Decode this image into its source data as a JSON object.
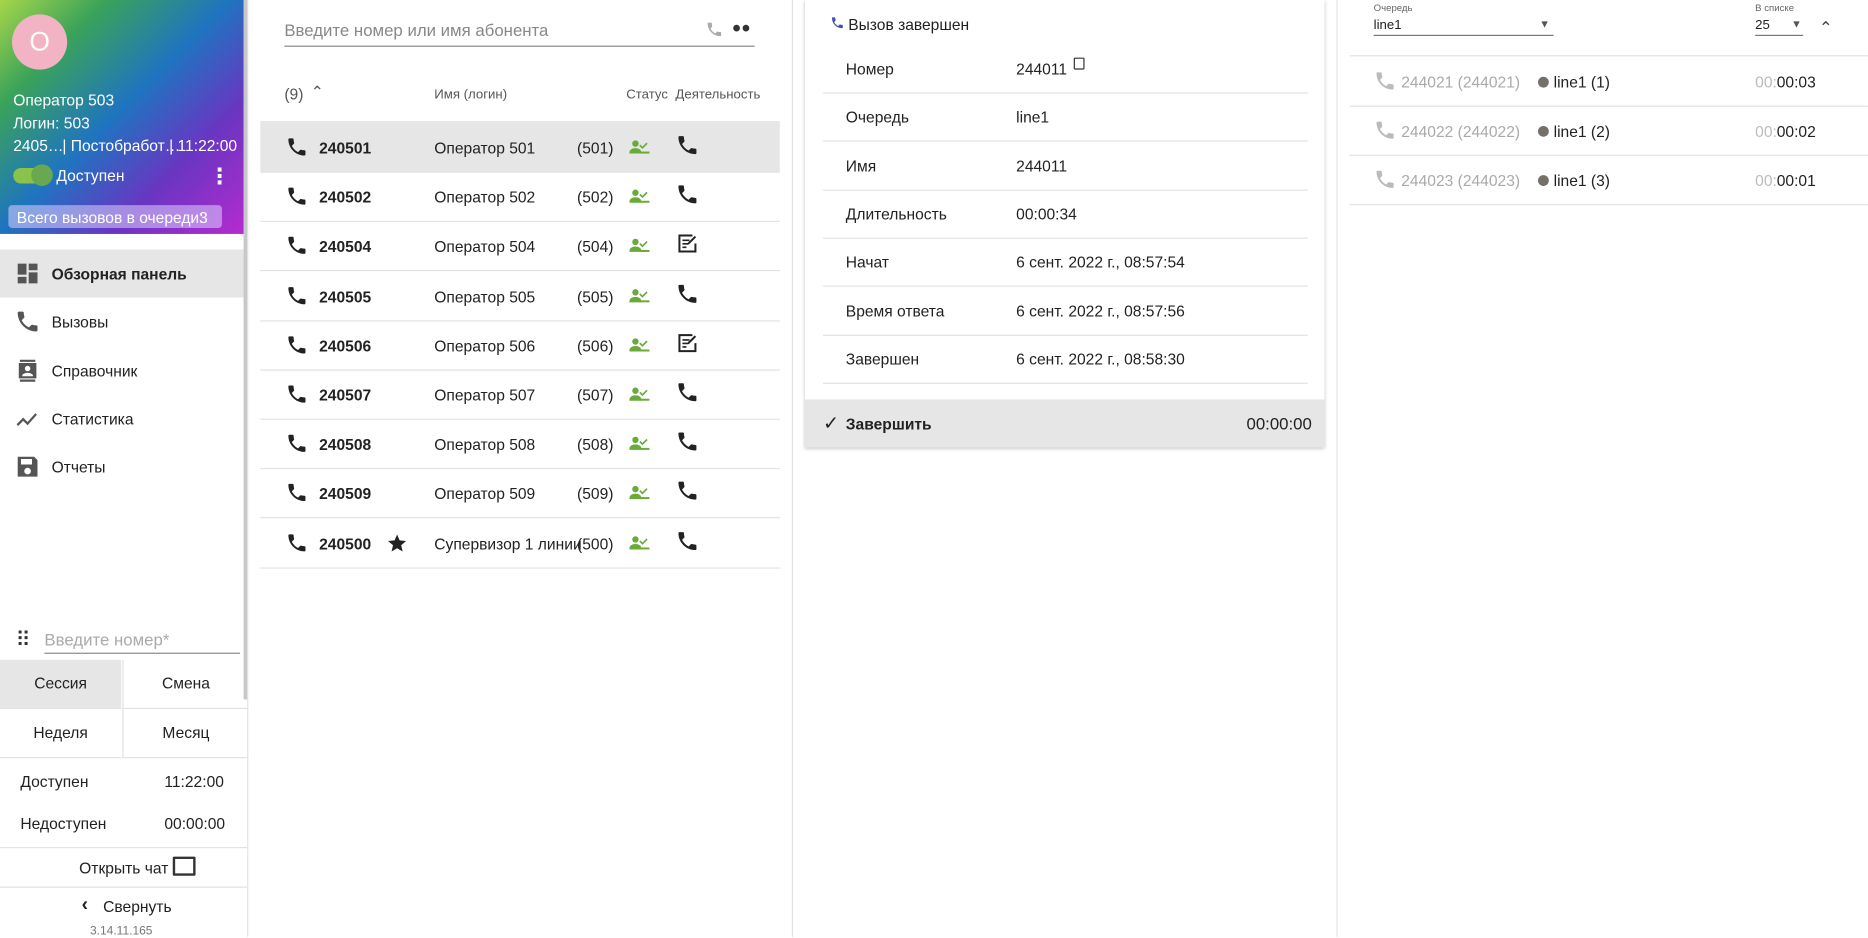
{
  "sidebar": {
    "avatar": "О",
    "name": "Оператор 503",
    "login": "Логин: 503",
    "ext": "2405…",
    "state": "| Постобработ…",
    "timer": "| 11:22:00",
    "availability": "Доступен",
    "queue_label": "Всего вызовов в очереди:",
    "queue_count": "3",
    "nav": [
      "Обзорная панель",
      "Вызовы",
      "Справочник",
      "Статистика",
      "Отчеты"
    ],
    "dial_placeholder": "Введите номер*",
    "tabs": [
      "Сессия",
      "Смена",
      "Неделя",
      "Месяц"
    ],
    "stats": [
      [
        "Доступен",
        "11:22:00"
      ],
      [
        "Недоступен",
        "00:00:00"
      ]
    ],
    "chat": "Открыть чат",
    "collapse": "Свернуть",
    "version": "3.14.11.165"
  },
  "operators": {
    "search_placeholder": "Введите номер или имя абонента",
    "count": "(9)",
    "headers": [
      "Имя (логин)",
      "Статус",
      "Деятельность"
    ],
    "rows": [
      {
        "number": "240501",
        "name": "Оператор 501",
        "login": "(501)",
        "activity": "phone"
      },
      {
        "number": "240502",
        "name": "Оператор 502",
        "login": "(502)",
        "activity": "phone"
      },
      {
        "number": "240504",
        "name": "Оператор 504",
        "login": "(504)",
        "activity": "note"
      },
      {
        "number": "240505",
        "name": "Оператор 505",
        "login": "(505)",
        "activity": "phone"
      },
      {
        "number": "240506",
        "name": "Оператор 506",
        "login": "(506)",
        "activity": "note"
      },
      {
        "number": "240507",
        "name": "Оператор 507",
        "login": "(507)",
        "activity": "phone"
      },
      {
        "number": "240508",
        "name": "Оператор 508",
        "login": "(508)",
        "activity": "phone"
      },
      {
        "number": "240509",
        "name": "Оператор 509",
        "login": "(509)",
        "activity": "phone"
      },
      {
        "number": "240500",
        "name": "Супервизор 1 линии",
        "login": "(500)",
        "activity": "phone",
        "supervisor": true
      }
    ]
  },
  "call": {
    "title": "Вызов завершен",
    "fields": [
      [
        "Номер",
        "244011"
      ],
      [
        "Очередь",
        "line1"
      ],
      [
        "Имя",
        "244011"
      ],
      [
        "Длительность",
        "00:00:34"
      ],
      [
        "Начат",
        "6 сент. 2022 г., 08:57:54"
      ],
      [
        "Время ответа",
        "6 сент. 2022 г., 08:57:56"
      ],
      [
        "Завершен",
        "6 сент. 2022 г., 08:58:30"
      ]
    ],
    "action": "Завершить",
    "timer": "00:00:00"
  },
  "queue": {
    "queue_label": "Очередь",
    "queue_value": "line1",
    "page_label": "В списке",
    "page_value": "25",
    "rows": [
      {
        "caller": "244021 (244021)",
        "queue": "line1 (1)",
        "time_prefix": "00:",
        "time": "00:03"
      },
      {
        "caller": "244022 (244022)",
        "queue": "line1 (2)",
        "time_prefix": "00:",
        "time": "00:02"
      },
      {
        "caller": "244023 (244023)",
        "queue": "line1 (3)",
        "time_prefix": "00:",
        "time": "00:01"
      }
    ]
  }
}
